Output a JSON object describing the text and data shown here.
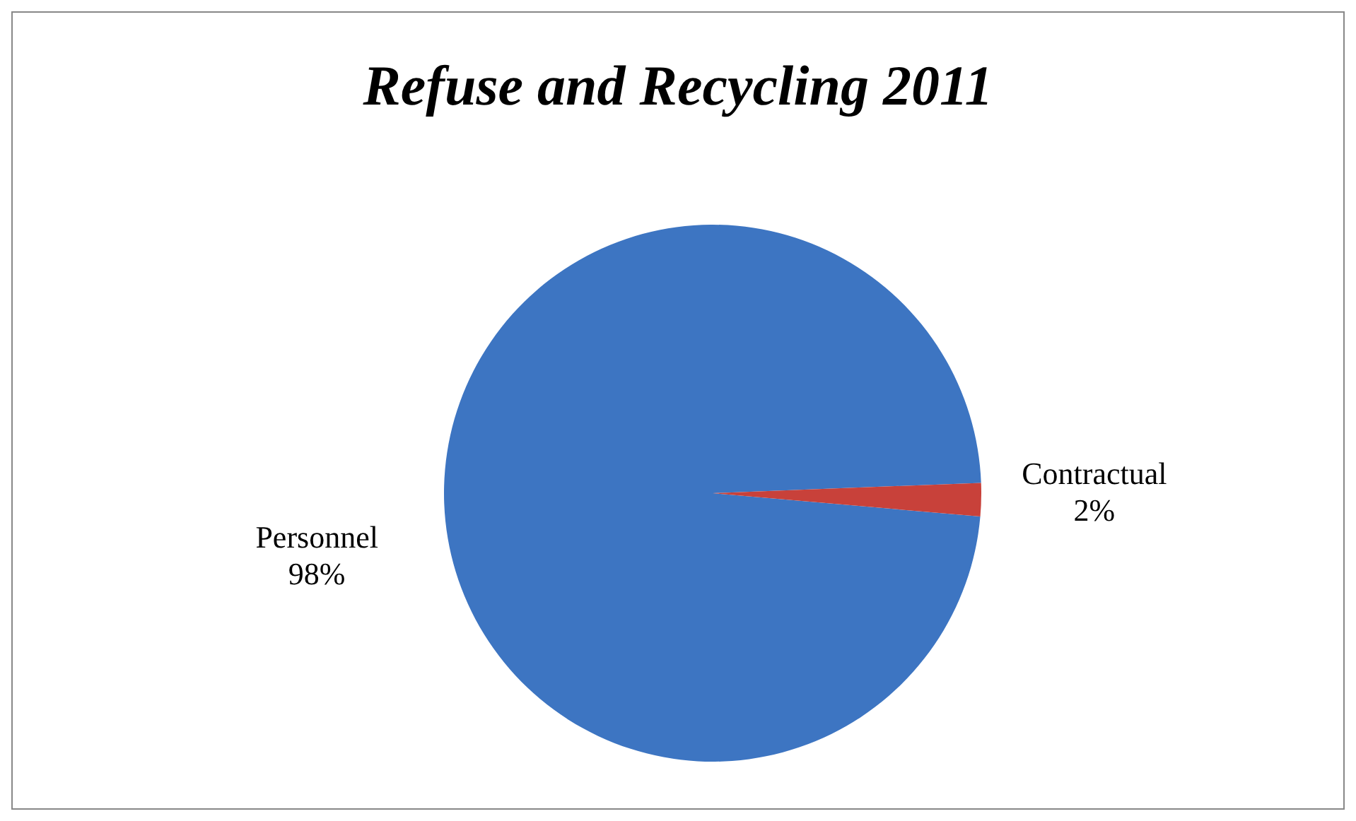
{
  "chart_data": {
    "type": "pie",
    "title": "Refuse and Recycling 2011",
    "categories": [
      "Personnel",
      "Contractual"
    ],
    "values": [
      98,
      2
    ],
    "value_labels": [
      "98%",
      "2%"
    ],
    "colors": [
      "#3d75c2",
      "#c8413a"
    ]
  }
}
